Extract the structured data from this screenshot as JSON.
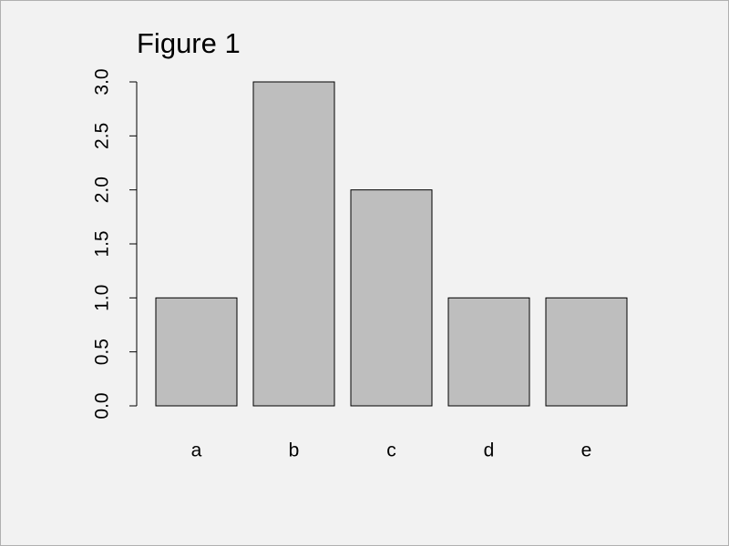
{
  "chart_data": {
    "type": "bar",
    "title": "Figure 1",
    "categories": [
      "a",
      "b",
      "c",
      "d",
      "e"
    ],
    "values": [
      1,
      3,
      2,
      1,
      1
    ],
    "color": "#bebebe",
    "ylim": [
      0,
      3
    ],
    "yticks": [
      {
        "value": 0,
        "label": "0.0"
      },
      {
        "value": 0.5,
        "label": "0.5"
      },
      {
        "value": 1,
        "label": "1.0"
      },
      {
        "value": 1.5,
        "label": "1.5"
      },
      {
        "value": 2,
        "label": "2.0"
      },
      {
        "value": 2.5,
        "label": "2.5"
      },
      {
        "value": 3,
        "label": "3.0"
      }
    ],
    "grid": false
  }
}
